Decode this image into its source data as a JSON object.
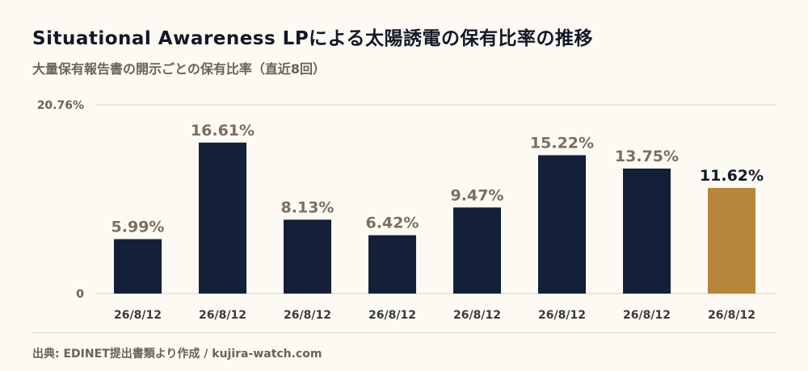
{
  "title": "Situational Awareness LPによる太陽誘電の保有比率の推移",
  "subtitle": "大量保有報告書の開示ごとの保有比率（直近8回）",
  "source": "出典: EDINET提出書類より作成 / kujira-watch.com",
  "colors": {
    "bar": "#14203a",
    "highlight": "#b8863b",
    "label": "#7a6f62",
    "highlight_label": "#111827",
    "grid": "#d8d2c0",
    "tick": "#6b6256"
  },
  "chart_data": {
    "type": "bar",
    "categories": [
      "26/8/12",
      "26/8/12",
      "26/8/12",
      "26/8/12",
      "26/8/12",
      "26/8/12",
      "26/8/12",
      "26/8/12"
    ],
    "values": [
      5.99,
      16.61,
      8.13,
      6.42,
      9.47,
      15.22,
      13.75,
      11.62
    ],
    "value_labels": [
      "5.99%",
      "16.61%",
      "8.13%",
      "6.42%",
      "9.47%",
      "15.22%",
      "13.75%",
      "11.62%"
    ],
    "highlight_index": 7,
    "ylim": [
      0,
      20.76
    ],
    "y_tick_labels": [
      "0",
      "20.76%"
    ],
    "grid": true
  }
}
